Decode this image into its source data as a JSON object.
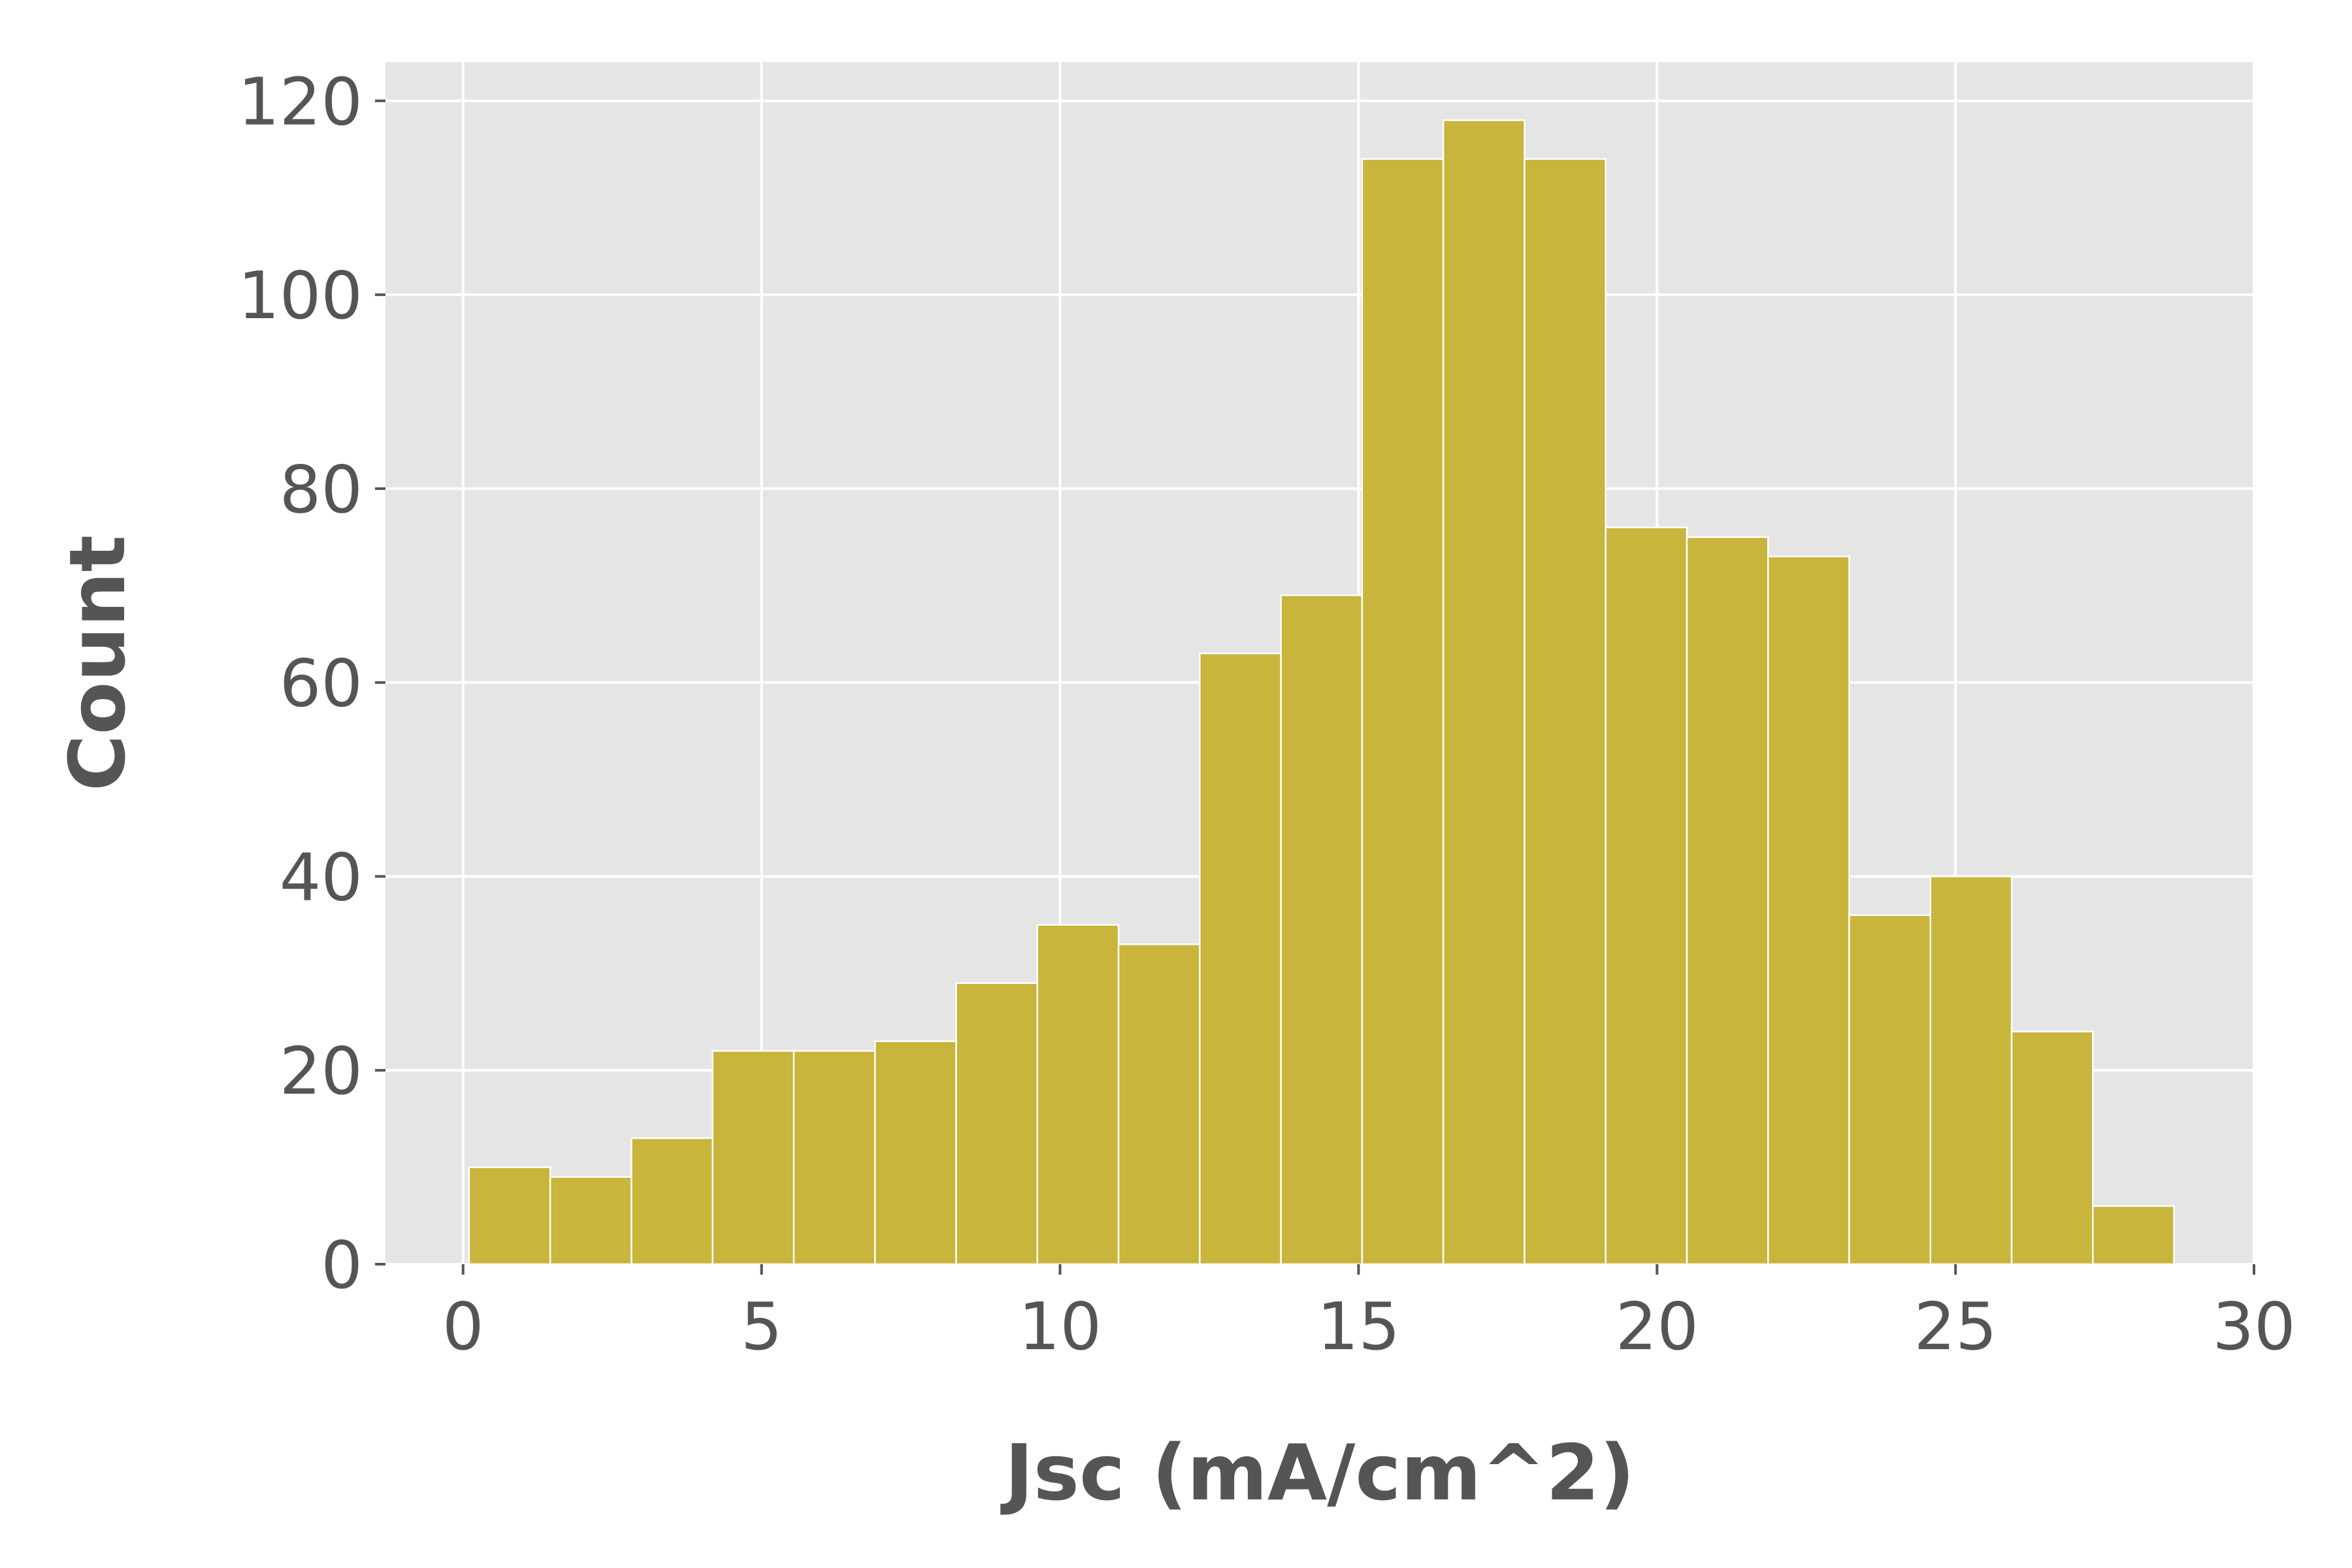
{
  "chart_data": {
    "type": "bar",
    "subtype": "histogram",
    "title": "",
    "xlabel": "Jsc (mA/cm^2)",
    "ylabel": "Count",
    "xlim": [
      -1.3,
      30
    ],
    "ylim": [
      0,
      124
    ],
    "xticks": [
      0,
      5,
      10,
      15,
      20,
      25,
      30
    ],
    "yticks": [
      0,
      20,
      40,
      60,
      80,
      100,
      120
    ],
    "grid": true,
    "bins": [
      {
        "x0": 0.1,
        "x1": 1.46,
        "count": 10
      },
      {
        "x0": 1.46,
        "x1": 2.82,
        "count": 9
      },
      {
        "x0": 2.82,
        "x1": 4.18,
        "count": 13
      },
      {
        "x0": 4.18,
        "x1": 5.54,
        "count": 22
      },
      {
        "x0": 5.54,
        "x1": 6.9,
        "count": 22
      },
      {
        "x0": 6.9,
        "x1": 8.26,
        "count": 23
      },
      {
        "x0": 8.26,
        "x1": 9.62,
        "count": 29
      },
      {
        "x0": 9.62,
        "x1": 10.98,
        "count": 35
      },
      {
        "x0": 10.98,
        "x1": 12.34,
        "count": 33
      },
      {
        "x0": 12.34,
        "x1": 13.7,
        "count": 63
      },
      {
        "x0": 13.7,
        "x1": 15.06,
        "count": 69
      },
      {
        "x0": 15.06,
        "x1": 16.42,
        "count": 114
      },
      {
        "x0": 16.42,
        "x1": 17.78,
        "count": 118
      },
      {
        "x0": 17.78,
        "x1": 19.14,
        "count": 114
      },
      {
        "x0": 19.14,
        "x1": 20.5,
        "count": 76
      },
      {
        "x0": 20.5,
        "x1": 21.86,
        "count": 75
      },
      {
        "x0": 21.86,
        "x1": 23.22,
        "count": 73
      },
      {
        "x0": 23.22,
        "x1": 24.58,
        "count": 36
      },
      {
        "x0": 24.58,
        "x1": 25.94,
        "count": 40
      },
      {
        "x0": 25.94,
        "x1": 27.3,
        "count": 24
      },
      {
        "x0": 27.3,
        "x1": 28.66,
        "count": 6
      }
    ],
    "colors": {
      "bar": "#c9b43c",
      "bar_edge": "#ffffff",
      "plot_background": "#e5e5e5",
      "grid": "#ffffff",
      "text": "#555555",
      "tick_mark": "#555555"
    }
  }
}
